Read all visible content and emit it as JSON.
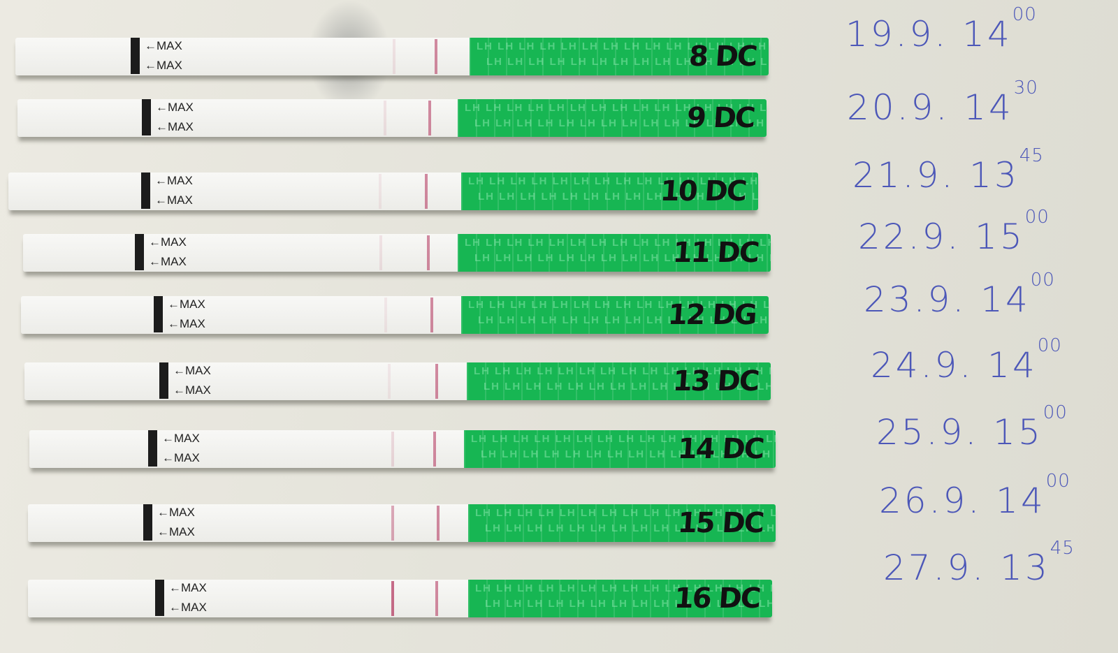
{
  "strip_text": {
    "max_marker": "←MAX",
    "pattern_text": "LH"
  },
  "colors": {
    "strip_green": "#17b653",
    "handwriting_blue": "#4c57b8",
    "test_line": "#b0305a"
  },
  "tests": [
    {
      "label": "8 DC",
      "date": "19.9.",
      "time_hour": "14",
      "time_min": "00",
      "test_line_intensity": 0.1
    },
    {
      "label": "9 DC",
      "date": "20.9.",
      "time_hour": "14",
      "time_min": "30",
      "test_line_intensity": 0.1
    },
    {
      "label": "10 DC",
      "date": "21.9.",
      "time_hour": "13",
      "time_min": "45",
      "test_line_intensity": 0.05
    },
    {
      "label": "11 DC",
      "date": "22.9.",
      "time_hour": "15",
      "time_min": "00",
      "test_line_intensity": 0.1
    },
    {
      "label": "12 DG",
      "date": "23.9.",
      "time_hour": "14",
      "time_min": "00",
      "test_line_intensity": 0.08
    },
    {
      "label": "13 DC",
      "date": "24.9.",
      "time_hour": "14",
      "time_min": "00",
      "test_line_intensity": 0.08
    },
    {
      "label": "14 DC",
      "date": "25.9.",
      "time_hour": "15",
      "time_min": "00",
      "test_line_intensity": 0.15
    },
    {
      "label": "15 DC",
      "date": "26.9.",
      "time_hour": "14",
      "time_min": "00",
      "test_line_intensity": 0.4
    },
    {
      "label": "16 DC",
      "date": "27.9.",
      "time_hour": "13",
      "time_min": "45",
      "test_line_intensity": 0.7
    }
  ]
}
